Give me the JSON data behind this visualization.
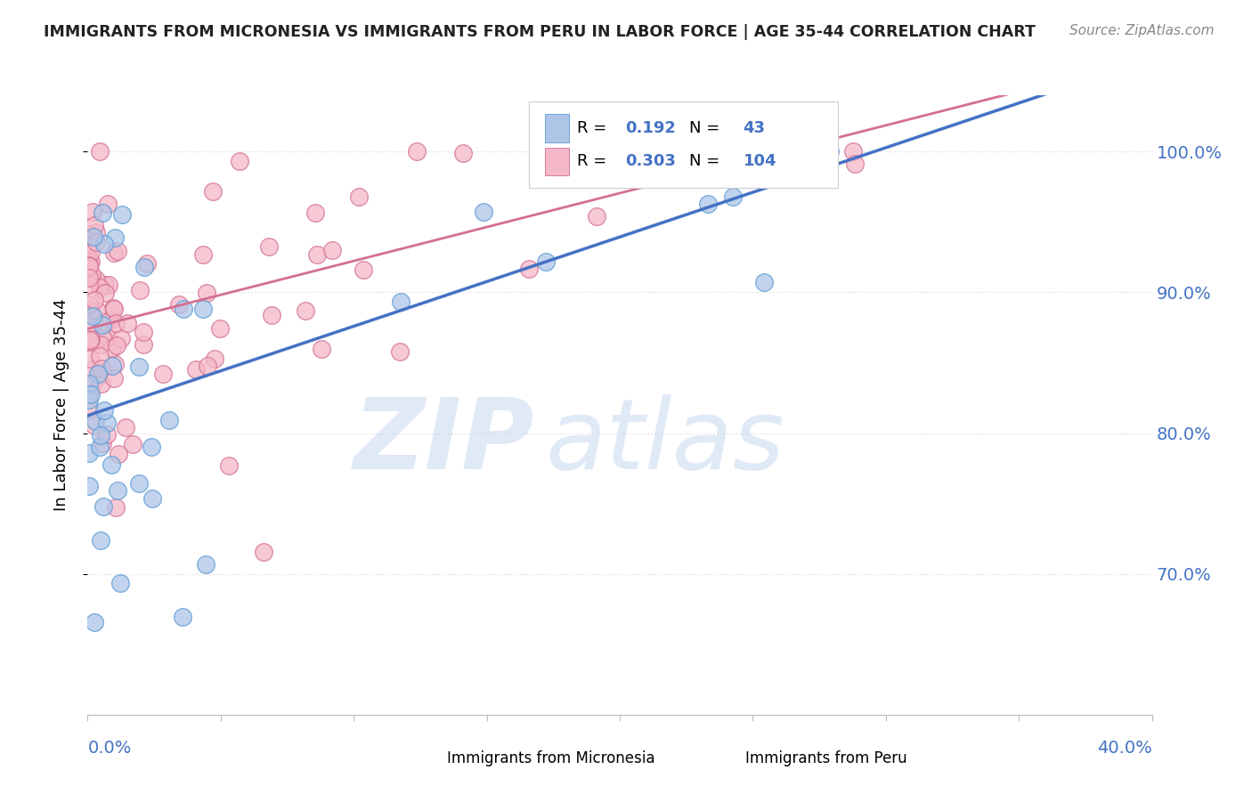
{
  "title": "IMMIGRANTS FROM MICRONESIA VS IMMIGRANTS FROM PERU IN LABOR FORCE | AGE 35-44 CORRELATION CHART",
  "source": "Source: ZipAtlas.com",
  "ylabel": "In Labor Force | Age 35-44",
  "yaxis_labels": [
    "100.0%",
    "90.0%",
    "80.0%",
    "70.0%"
  ],
  "yaxis_values": [
    1.0,
    0.9,
    0.8,
    0.7
  ],
  "xlim": [
    0.0,
    0.4
  ],
  "ylim": [
    0.6,
    1.04
  ],
  "micronesia_color": "#aec6e8",
  "peru_color": "#f4b8c8",
  "micronesia_edge": "#5b9bd5",
  "peru_edge": "#d47090",
  "trend_micro_color": "#4472c4",
  "trend_peru_color": "#d47090",
  "R_micro": 0.192,
  "N_micro": 43,
  "R_peru": 0.303,
  "N_peru": 104,
  "legend_label_micro": "Immigrants from Micronesia",
  "legend_label_peru": "Immigrants from Peru",
  "watermark_zip": "ZIP",
  "watermark_atlas": "atlas",
  "watermark_color_zip": "#c8d8f0",
  "watermark_color_atlas": "#c8d8f0",
  "rn_label_color": "#4472c4",
  "grid_color": "#dddddd",
  "title_color": "#222222",
  "source_color": "#888888",
  "axis_label_color": "#4472c4"
}
